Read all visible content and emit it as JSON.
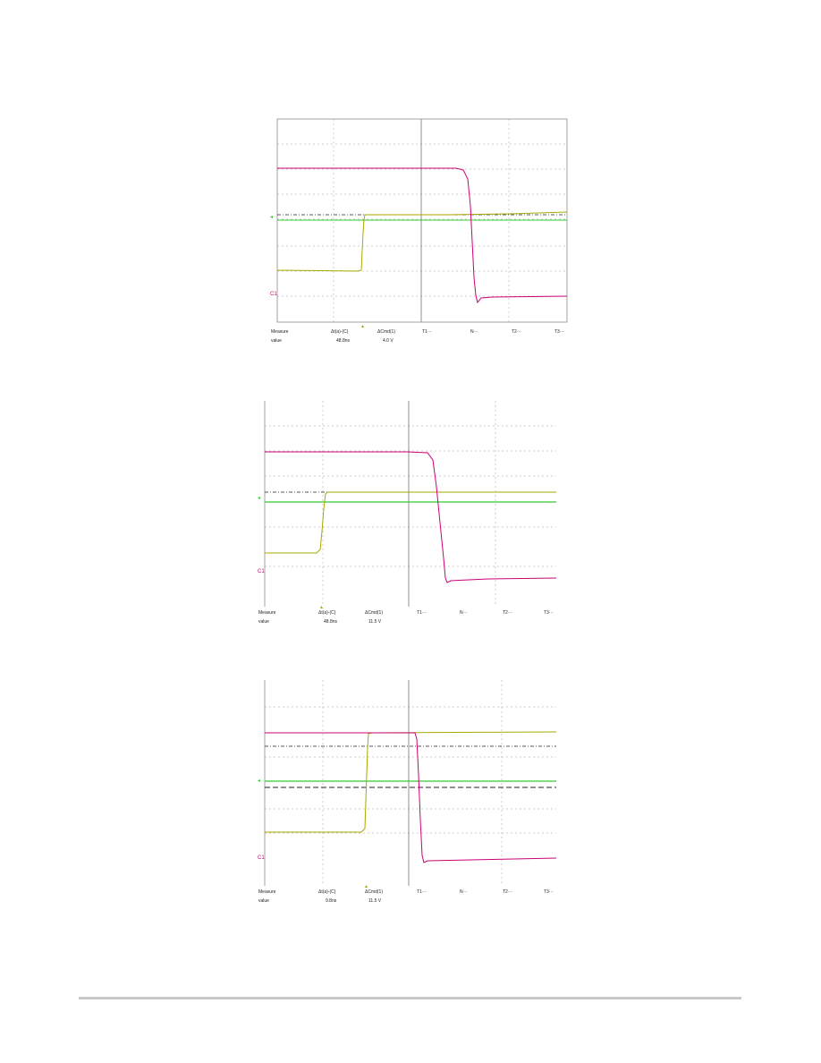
{
  "colors": {
    "ch1_magenta": "#cc0077",
    "ch2_olive": "#a8a800",
    "ch3_green": "#33cc33",
    "grid": "#888888",
    "footer_rule": "#c8c8c8"
  },
  "scopes": [
    {
      "ch1_marker": "C1",
      "ch2_marker": "C2",
      "measure_header": [
        "Measure",
        "Δt(a)-(C)",
        "ΔCmd(1)",
        "T1···",
        "N···",
        "T2···",
        "T3···"
      ],
      "measure_values": [
        "value",
        "48.8ns",
        "4.0 V",
        "",
        "",
        "",
        ""
      ]
    },
    {
      "ch1_marker": "C1",
      "ch2_marker": "C2",
      "measure_header": [
        "Measure",
        "Δt(a)-(C)",
        "ΔCmd(1)",
        "T1···",
        "N···",
        "T2···",
        "T3···"
      ],
      "measure_values": [
        "value",
        "48.8ns",
        "11.5 V",
        "",
        "",
        "",
        ""
      ]
    },
    {
      "ch1_marker": "C1",
      "ch2_marker": "C2",
      "measure_header": [
        "Measure",
        "Δt(a)-(C)",
        "ΔCmd(1)",
        "T1···",
        "N···",
        "T2···",
        "T3···"
      ],
      "measure_values": [
        "value",
        "9.8ns",
        "11.5 V",
        "",
        "",
        "",
        ""
      ]
    }
  ]
}
